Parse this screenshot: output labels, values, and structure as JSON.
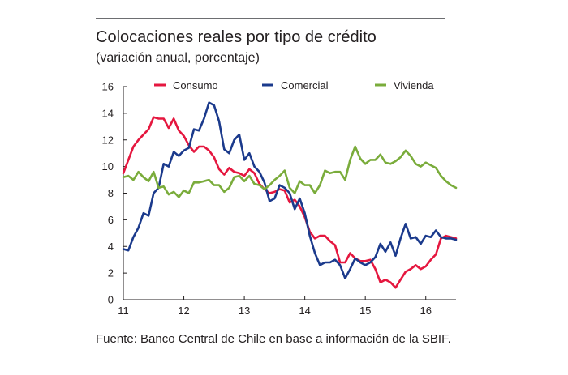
{
  "title": "Colocaciones reales por tipo de crédito",
  "subtitle": "(variación anual, porcentaje)",
  "source": "Fuente: Banco Central de Chile en base a información de la SBIF.",
  "chart_data": {
    "type": "line",
    "title": "Colocaciones reales por tipo de crédito",
    "subtitle": "(variación anual, porcentaje)",
    "xlabel": "",
    "ylabel": "",
    "xlim": [
      11,
      16.5
    ],
    "ylim": [
      0,
      16
    ],
    "yticks": [
      0,
      2,
      4,
      6,
      8,
      10,
      12,
      14,
      16
    ],
    "xticks": [
      11,
      12,
      13,
      14,
      15,
      16
    ],
    "grid": false,
    "legend_position": "top",
    "colors": {
      "Consumo": "#e5173f",
      "Comercial": "#1b3a8c",
      "Vivienda": "#7aac3b"
    },
    "series": [
      {
        "name": "Consumo",
        "x": [
          11.0,
          11.083,
          11.167,
          11.25,
          11.333,
          11.417,
          11.5,
          11.583,
          11.667,
          11.75,
          11.833,
          11.917,
          12.0,
          12.083,
          12.167,
          12.25,
          12.333,
          12.417,
          12.5,
          12.583,
          12.667,
          12.75,
          12.833,
          12.917,
          13.0,
          13.083,
          13.167,
          13.25,
          13.333,
          13.417,
          13.5,
          13.583,
          13.667,
          13.75,
          13.833,
          13.917,
          14.0,
          14.083,
          14.167,
          14.25,
          14.333,
          14.417,
          14.5,
          14.583,
          14.667,
          14.75,
          14.833,
          14.917,
          15.0,
          15.083,
          15.167,
          15.25,
          15.333,
          15.417,
          15.5,
          15.583,
          15.667,
          15.75,
          15.833,
          15.917,
          16.0,
          16.083,
          16.167,
          16.25,
          16.333,
          16.417,
          16.5
        ],
        "values": [
          9.5,
          10.5,
          11.5,
          12.0,
          12.4,
          12.8,
          13.7,
          13.6,
          13.6,
          12.9,
          13.6,
          12.7,
          12.3,
          11.6,
          11.1,
          11.5,
          11.5,
          11.2,
          10.7,
          9.8,
          9.4,
          9.9,
          9.6,
          9.5,
          9.3,
          9.8,
          9.5,
          8.7,
          8.3,
          8.0,
          8.1,
          8.3,
          8.2,
          7.3,
          7.5,
          7.0,
          6.2,
          5.1,
          4.6,
          4.8,
          4.8,
          4.4,
          4.1,
          2.8,
          2.8,
          3.5,
          3.1,
          2.9,
          2.9,
          3.0,
          2.3,
          1.3,
          1.5,
          1.3,
          0.9,
          1.5,
          2.1,
          2.3,
          2.6,
          2.3,
          2.5,
          3.0,
          3.4,
          4.6,
          4.8,
          4.7,
          4.6
        ]
      },
      {
        "name": "Comercial",
        "x": [
          11.0,
          11.083,
          11.167,
          11.25,
          11.333,
          11.417,
          11.5,
          11.583,
          11.667,
          11.75,
          11.833,
          11.917,
          12.0,
          12.083,
          12.167,
          12.25,
          12.333,
          12.417,
          12.5,
          12.583,
          12.667,
          12.75,
          12.833,
          12.917,
          13.0,
          13.083,
          13.167,
          13.25,
          13.333,
          13.417,
          13.5,
          13.583,
          13.667,
          13.75,
          13.833,
          13.917,
          14.0,
          14.083,
          14.167,
          14.25,
          14.333,
          14.417,
          14.5,
          14.583,
          14.667,
          14.75,
          14.833,
          14.917,
          15.0,
          15.083,
          15.167,
          15.25,
          15.333,
          15.417,
          15.5,
          15.583,
          15.667,
          15.75,
          15.833,
          15.917,
          16.0,
          16.083,
          16.167,
          16.25,
          16.333,
          16.417,
          16.5
        ],
        "values": [
          3.8,
          3.7,
          4.7,
          5.4,
          6.5,
          6.3,
          8.0,
          8.4,
          10.2,
          10.0,
          11.1,
          10.8,
          11.2,
          11.4,
          12.8,
          12.7,
          13.6,
          14.8,
          14.6,
          13.4,
          11.3,
          11.0,
          12.0,
          12.4,
          10.5,
          11.0,
          10.0,
          9.6,
          8.8,
          7.4,
          7.6,
          8.6,
          8.4,
          8.0,
          6.8,
          7.6,
          6.5,
          4.8,
          3.5,
          2.6,
          2.8,
          2.8,
          3.0,
          2.6,
          1.6,
          2.3,
          3.1,
          2.8,
          2.6,
          2.8,
          3.2,
          4.2,
          3.6,
          4.3,
          3.3,
          4.6,
          5.7,
          4.6,
          4.7,
          4.2,
          4.8,
          4.7,
          5.2,
          4.7,
          4.6,
          4.6,
          4.5
        ]
      },
      {
        "name": "Vivienda",
        "x": [
          11.0,
          11.083,
          11.167,
          11.25,
          11.333,
          11.417,
          11.5,
          11.583,
          11.667,
          11.75,
          11.833,
          11.917,
          12.0,
          12.083,
          12.167,
          12.25,
          12.333,
          12.417,
          12.5,
          12.583,
          12.667,
          12.75,
          12.833,
          12.917,
          13.0,
          13.083,
          13.167,
          13.25,
          13.333,
          13.417,
          13.5,
          13.583,
          13.667,
          13.75,
          13.833,
          13.917,
          14.0,
          14.083,
          14.167,
          14.25,
          14.333,
          14.417,
          14.5,
          14.583,
          14.667,
          14.75,
          14.833,
          14.917,
          15.0,
          15.083,
          15.167,
          15.25,
          15.333,
          15.417,
          15.5,
          15.583,
          15.667,
          15.75,
          15.833,
          15.917,
          16.0,
          16.083,
          16.167,
          16.25,
          16.333,
          16.417,
          16.5
        ],
        "values": [
          9.2,
          9.3,
          9.0,
          9.6,
          9.2,
          8.9,
          9.6,
          8.4,
          8.5,
          7.9,
          8.1,
          7.7,
          8.2,
          8.0,
          8.8,
          8.8,
          8.9,
          9.0,
          8.6,
          8.6,
          8.1,
          8.4,
          9.2,
          9.3,
          8.9,
          9.3,
          8.7,
          8.6,
          8.3,
          8.6,
          9.0,
          9.3,
          9.7,
          8.4,
          8.0,
          8.9,
          8.6,
          8.6,
          8.0,
          8.6,
          9.7,
          9.5,
          9.6,
          9.6,
          9.0,
          10.5,
          11.5,
          10.6,
          10.2,
          10.5,
          10.5,
          10.9,
          10.3,
          10.2,
          10.4,
          10.7,
          11.2,
          10.8,
          10.2,
          10.0,
          10.3,
          10.1,
          9.9,
          9.3,
          8.9,
          8.6,
          8.4
        ]
      }
    ]
  }
}
